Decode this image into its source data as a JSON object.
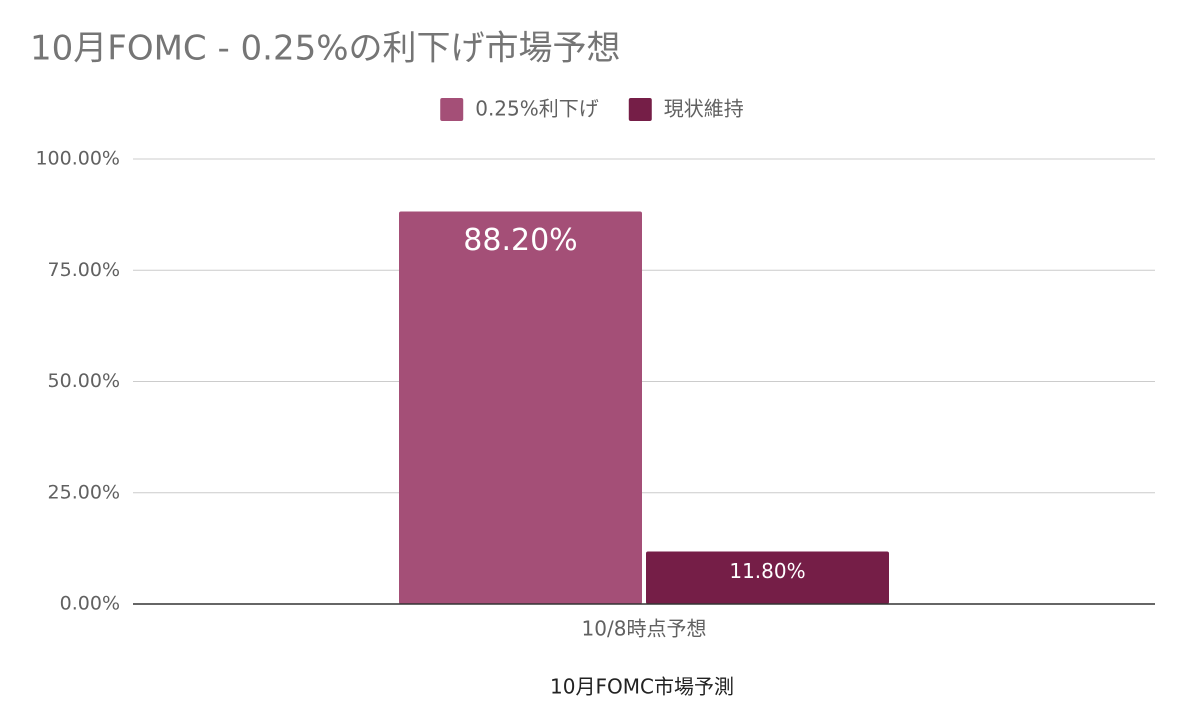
{
  "chart_data": {
    "type": "bar",
    "title": "10月FOMC - 0.25%の利下げ市場予想",
    "x_label": "10月FOMC市場予測",
    "categories": [
      "10/8時点予想"
    ],
    "series": [
      {
        "name": "0.25%利下げ",
        "color": "#a44f77",
        "values": [
          88.2
        ],
        "value_labels": [
          "88.20%"
        ]
      },
      {
        "name": "現状維持",
        "color": "#751e47",
        "values": [
          11.8
        ],
        "value_labels": [
          "11.80%"
        ]
      }
    ],
    "ylim": [
      0,
      100
    ],
    "yticks": [
      {
        "value": 0,
        "label": "0.00%"
      },
      {
        "value": 25,
        "label": "25.00%"
      },
      {
        "value": 50,
        "label": "50.00%"
      },
      {
        "value": 75,
        "label": "75.00%"
      },
      {
        "value": 100,
        "label": "100.00%"
      }
    ],
    "grid": true,
    "legend": "top"
  }
}
